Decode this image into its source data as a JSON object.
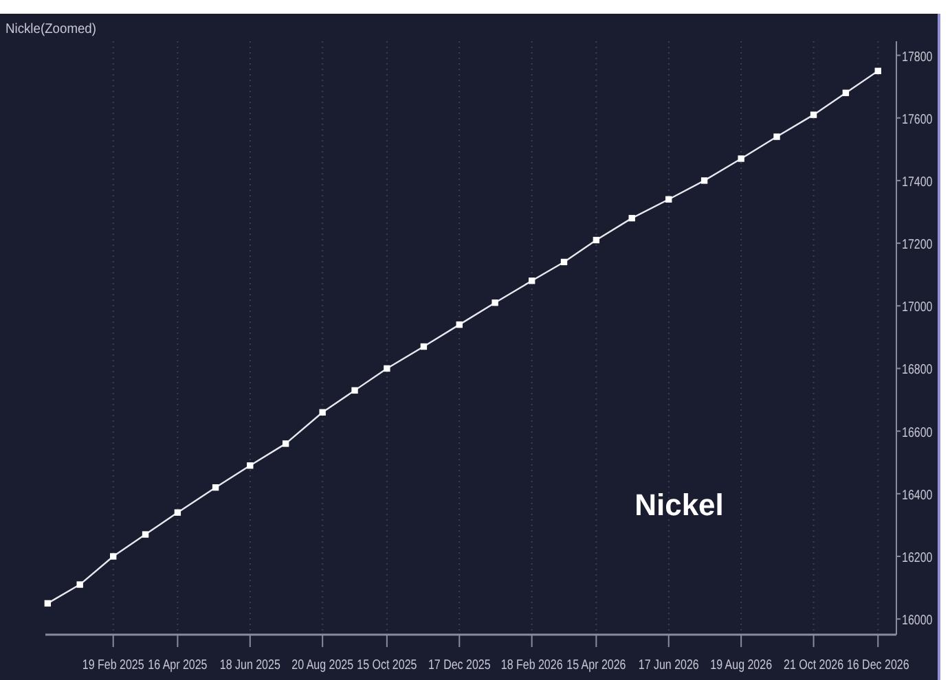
{
  "chart_data": {
    "type": "line",
    "title": "Nickle(Zoomed)",
    "annotations": [
      "Nickel"
    ],
    "x": [
      "2024-12-24",
      "2025-01-21",
      "2025-02-19",
      "2025-03-19",
      "2025-04-16",
      "2025-05-19",
      "2025-06-18",
      "2025-07-19",
      "2025-08-20",
      "2025-09-17",
      "2025-10-15",
      "2025-11-16",
      "2025-12-17",
      "2026-01-17",
      "2026-02-18",
      "2026-03-18",
      "2026-04-15",
      "2026-05-16",
      "2026-06-17",
      "2026-07-18",
      "2026-08-19",
      "2026-09-19",
      "2026-10-21",
      "2026-11-18",
      "2026-12-16"
    ],
    "series": [
      {
        "color": "#e8e8ee",
        "values": [
          16050,
          16110,
          16200,
          16270,
          16340,
          16420,
          16490,
          16560,
          16660,
          16730,
          16800,
          16870,
          16940,
          17010,
          17080,
          17140,
          17210,
          17280,
          17340,
          17400,
          17470,
          17540,
          17610,
          17680,
          17750
        ]
      }
    ],
    "xlim": [
      "2024-12-22",
      "2027-01-01"
    ],
    "xticks": [
      {
        "value": "2025-02-19",
        "label": "19 Feb 2025"
      },
      {
        "value": "2025-04-16",
        "label": "16 Apr 2025"
      },
      {
        "value": "2025-06-18",
        "label": "18 Jun 2025"
      },
      {
        "value": "2025-08-20",
        "label": "20 Aug 2025"
      },
      {
        "value": "2025-10-15",
        "label": "15 Oct 2025"
      },
      {
        "value": "2025-12-17",
        "label": "17 Dec 2025"
      },
      {
        "value": "2026-02-18",
        "label": "18 Feb 2026"
      },
      {
        "value": "2026-04-15",
        "label": "15 Apr 2026"
      },
      {
        "value": "2026-06-17",
        "label": "17 Jun 2026"
      },
      {
        "value": "2026-08-19",
        "label": "19 Aug 2026"
      },
      {
        "value": "2026-10-21",
        "label": "21 Oct 2026"
      },
      {
        "value": "2026-12-16",
        "label": "16 Dec 2026"
      }
    ],
    "ylim": [
      15950,
      17845
    ],
    "yticks": [
      16000,
      16200,
      16400,
      16600,
      16800,
      17000,
      17200,
      17400,
      17600,
      17800
    ],
    "grid": "x",
    "marker": "square",
    "line_style": "solid"
  }
}
